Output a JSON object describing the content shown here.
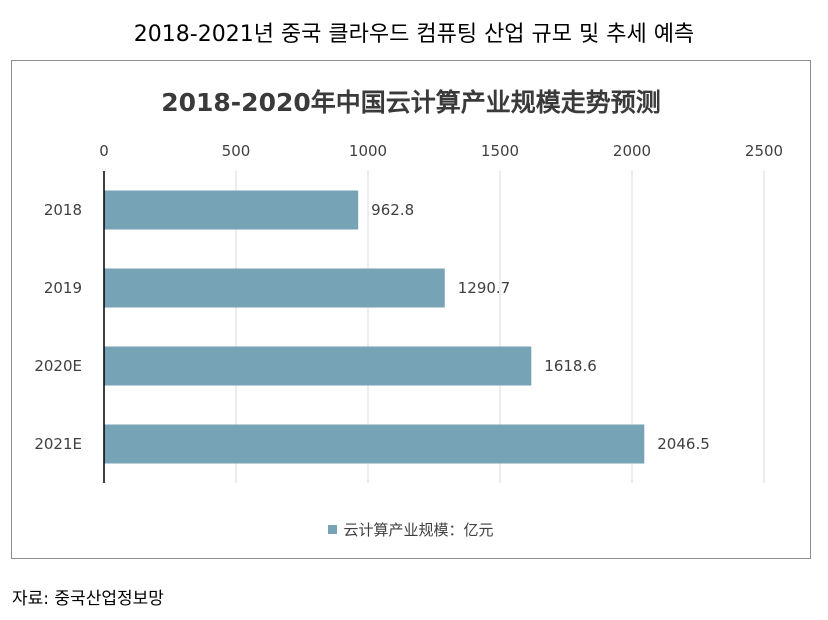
{
  "page_title": "2018-2021년 중국 클라우드 컴퓨팅 산업 규모 및 추세 예측",
  "source": "자료: 중국산업정보망",
  "colors": {
    "bar": "#76a3b6",
    "grid": "#d9d9d9",
    "axis": "#000000"
  },
  "chart_data": {
    "type": "bar",
    "orientation": "horizontal",
    "title": "2018-2020年中国云计算产业规模走势预测",
    "categories": [
      "2018",
      "2019",
      "2020E",
      "2021E"
    ],
    "series": [
      {
        "name": "云计算产业规模：亿元",
        "values": [
          962.8,
          1290.7,
          1618.6,
          2046.5
        ]
      }
    ],
    "data_labels": [
      "962.8",
      "1290.7",
      "1618.6",
      "2046.5"
    ],
    "xlim": [
      0,
      2500
    ],
    "x_ticks": [
      "0",
      "500",
      "1000",
      "1500",
      "2000",
      "2500"
    ],
    "x_axis_position": "top",
    "grid": "vertical",
    "legend": "bottom"
  }
}
